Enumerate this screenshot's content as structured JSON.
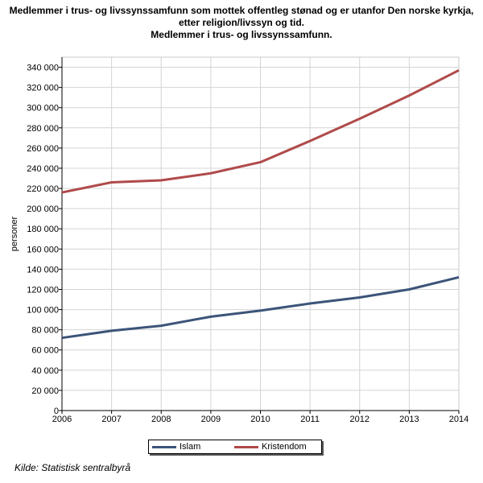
{
  "chart_data": {
    "type": "line",
    "title": [
      "Medlemmer i trus- og livssynssamfunn som mottek offentleg stønad og er utanfor Den norske kyrkja,",
      "etter religion/livssyn og tid.",
      "Medlemmer i trus- og livssynssamfunn."
    ],
    "xlabel": "",
    "ylabel": "personer",
    "x": [
      2006,
      2007,
      2008,
      2009,
      2010,
      2011,
      2012,
      2013,
      2014
    ],
    "ylim": [
      0,
      350000
    ],
    "yticks": [
      0,
      20000,
      40000,
      60000,
      80000,
      100000,
      120000,
      140000,
      160000,
      180000,
      200000,
      220000,
      240000,
      260000,
      280000,
      300000,
      320000,
      340000
    ],
    "ytick_labels": [
      "0",
      "20 000",
      "40 000",
      "60 000",
      "80 000",
      "100 000",
      "120 000",
      "140 000",
      "160 000",
      "180 000",
      "200 000",
      "220 000",
      "240 000",
      "260 000",
      "280 000",
      "300 000",
      "320 000",
      "340 000"
    ],
    "grid": true,
    "legend_position": "bottom-center",
    "series": [
      {
        "name": "Islam",
        "color": "#3c5479",
        "values": [
          72000,
          79000,
          84000,
          93000,
          99000,
          106000,
          112000,
          120000,
          132000
        ]
      },
      {
        "name": "Kristendom",
        "color": "#b04a4a",
        "values": [
          216000,
          226000,
          228000,
          235000,
          246000,
          267000,
          289000,
          312000,
          337000
        ]
      }
    ]
  },
  "source": "Kilde: Statistisk sentralbyrå"
}
